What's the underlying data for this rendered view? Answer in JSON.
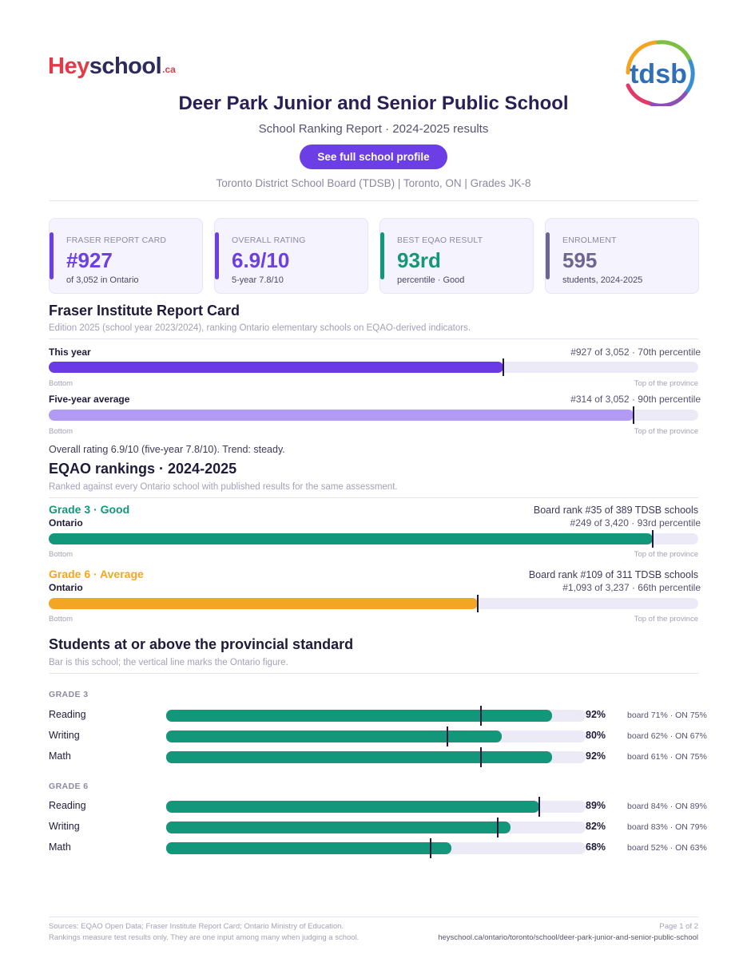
{
  "header": {
    "logo_hey": "Hey",
    "logo_school": "school",
    "logo_ca": ".ca",
    "logo_tdsb": "tdsb",
    "title": "Deer Park Junior and Senior Public School",
    "subtitle": "School Ranking Report  ·  2024-2025 results",
    "profile_button": "See full school profile",
    "meta": "Toronto District School Board (TDSB)  |  Toronto, ON  |  Grades JK-8"
  },
  "cards": [
    {
      "label": "FRASER REPORT CARD",
      "value": "#927",
      "sub": "of 3,052 in Ontario",
      "color": "#6c3fe6"
    },
    {
      "label": "OVERALL RATING",
      "value": "6.9/10",
      "sub": "5-year 7.8/10",
      "color": "#6c3fe6"
    },
    {
      "label": "BEST EQAO RESULT",
      "value": "93rd",
      "sub": "percentile  ·  Good",
      "color": "#12977a"
    },
    {
      "label": "ENROLMENT",
      "value": "595",
      "sub": "students, 2024-2025",
      "color": "#6e6690"
    }
  ],
  "fraser": {
    "title": "Fraser Institute Report Card",
    "desc": "Edition 2025 (school year 2023/2024), ranking Ontario elementary schools on EQAO-derived indicators.",
    "this_year": {
      "label": "This year",
      "rank_text": "#927 of 3,052  ·  70th percentile",
      "percentile": 70,
      "color": "#6a3ae6"
    },
    "five_year": {
      "label": "Five-year average",
      "rank_text": "#314 of 3,052  ·  90th percentile",
      "percentile": 90,
      "color": "#b39af5"
    },
    "axis_left": "Bottom",
    "axis_right": "Top of the province",
    "summary": "Overall rating 6.9/10 (five-year 7.8/10). Trend: steady."
  },
  "eqao": {
    "title": "EQAO rankings  ·  2024-2025",
    "desc": "Ranked against every Ontario school with published results for the same assessment.",
    "grades": [
      {
        "heading": "Grade 3  ·  Good",
        "color": "#12977a",
        "board_rank": "Board rank #35 of 389 TDSB schools",
        "scope": "Ontario",
        "rank_text": "#249 of 3,420  ·  93rd percentile",
        "percentile": 93
      },
      {
        "heading": "Grade 6  ·  Average",
        "color": "#f2a623",
        "board_rank": "Board rank #109 of 311 TDSB schools",
        "scope": "Ontario",
        "rank_text": "#1,093 of 3,237  ·  66th percentile",
        "percentile": 66
      }
    ],
    "axis_left": "Bottom",
    "axis_right": "Top of the province"
  },
  "standard": {
    "title": "Students at or above the provincial standard",
    "desc": "Bar is this school; the vertical line marks the Ontario figure.",
    "groups": [
      {
        "title": "GRADE 3",
        "rows": [
          {
            "subject": "Reading",
            "school": 92,
            "pct_text": "92%",
            "ontario": 75,
            "cmp": "board 71%  ·  ON 75%"
          },
          {
            "subject": "Writing",
            "school": 80,
            "pct_text": "80%",
            "ontario": 67,
            "cmp": "board 62%  ·  ON 67%"
          },
          {
            "subject": "Math",
            "school": 92,
            "pct_text": "92%",
            "ontario": 75,
            "cmp": "board 61%  ·  ON 75%"
          }
        ]
      },
      {
        "title": "GRADE 6",
        "rows": [
          {
            "subject": "Reading",
            "school": 89,
            "pct_text": "89%",
            "ontario": 89,
            "cmp": "board 84%  ·  ON 89%"
          },
          {
            "subject": "Writing",
            "school": 82,
            "pct_text": "82%",
            "ontario": 79,
            "cmp": "board 83%  ·  ON 79%"
          },
          {
            "subject": "Math",
            "school": 68,
            "pct_text": "68%",
            "ontario": 63,
            "cmp": "board 52%  ·  ON 63%"
          }
        ]
      }
    ]
  },
  "footer": {
    "sources": "Sources: EQAO Open Data; Fraser Institute Report Card; Ontario Ministry of Education.",
    "note": "Rankings measure test results only. They are one input among many when judging a school.",
    "page": "Page 1 of 2",
    "url": "heyschool.ca/ontario/toronto/school/deer-park-junior-and-senior-public-school"
  },
  "colors": {
    "accent": "#6c3fe6",
    "good": "#12977a",
    "average": "#f2a623",
    "track": "#eceaf7"
  }
}
